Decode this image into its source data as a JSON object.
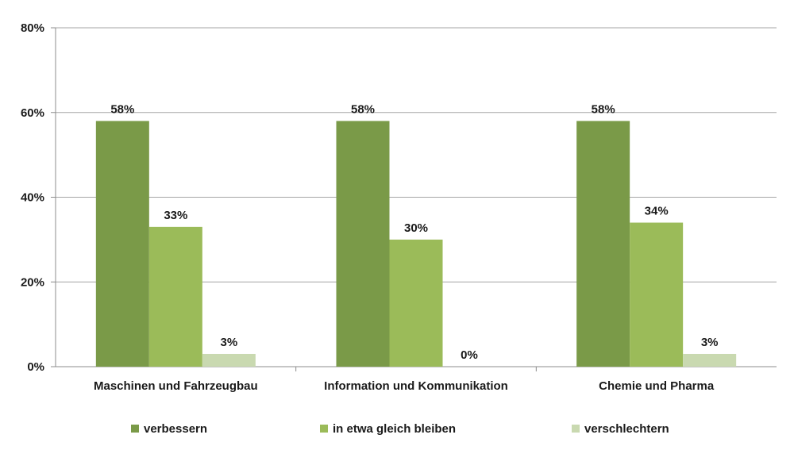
{
  "chart_data": {
    "type": "bar",
    "categories": [
      "Maschinen und Fahrzeugbau",
      "Information und Kommunikation",
      "Chemie und Pharma"
    ],
    "series": [
      {
        "name": "verbessern",
        "values": [
          58,
          58,
          58
        ],
        "color": "#7a9a48"
      },
      {
        "name": "in etwa gleich bleiben",
        "values": [
          33,
          30,
          34
        ],
        "color": "#9bbb59"
      },
      {
        "name": "verschlechtern",
        "values": [
          3,
          0,
          3
        ],
        "color": "#c9d9b0"
      }
    ],
    "data_labels": [
      [
        "58%",
        "58%",
        "58%"
      ],
      [
        "33%",
        "30%",
        "34%"
      ],
      [
        "3%",
        "0%",
        "3%"
      ]
    ],
    "ylim": [
      0,
      80
    ],
    "yticks": [
      0,
      20,
      40,
      60,
      80
    ],
    "ytick_labels": [
      "0%",
      "20%",
      "40%",
      "60%",
      "80%"
    ],
    "grid": true,
    "legend_position": "bottom"
  }
}
